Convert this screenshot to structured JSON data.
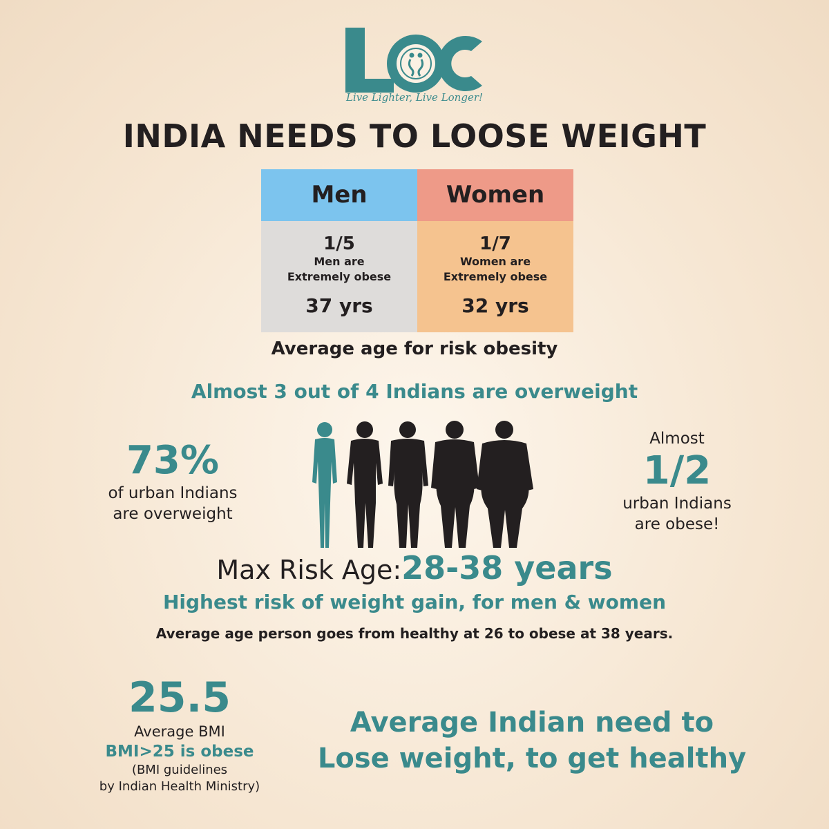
{
  "header": {
    "logo_text": "LOC",
    "tagline": "Live Lighter, Live Longer!",
    "title": "INDIA NEEDS TO LOOSE WEIGHT"
  },
  "comparison_table": {
    "men": {
      "label": "Men",
      "fraction": "1/5",
      "desc_line1": "Men are",
      "desc_line2": "Extremely obese",
      "age": "37 yrs",
      "header_color": "#7cc4ee",
      "body_color": "#dedcda"
    },
    "women": {
      "label": "Women",
      "fraction": "1/7",
      "desc_line1": "Women are",
      "desc_line2": "Extremely obese",
      "age": "32 yrs",
      "header_color": "#ee9a88",
      "body_color": "#f5c38f"
    },
    "caption": "Average age for risk obesity"
  },
  "overweight": {
    "headline": "Almost 3 out of 4 Indians are overweight",
    "urban_pct": "73%",
    "urban_pct_line1": "of urban Indians",
    "urban_pct_line2": "are overweight",
    "obese_prefix": "Almost",
    "obese_fraction": "1/2",
    "obese_line1": "urban Indians",
    "obese_line2": "are obese!"
  },
  "risk": {
    "label": "Max Risk Age:",
    "value": "28-38 years",
    "subtitle": "Highest risk of weight gain, for men & women",
    "note": "Average age person goes from healthy at 26 to obese at 38 years."
  },
  "bmi": {
    "value": "25.5",
    "label": "Average BMI",
    "rule": "BMI>25 is obese",
    "guide_line1": "(BMI guidelines",
    "guide_line2": "by Indian Health Ministry)"
  },
  "closing": {
    "line1": "Average Indian need to",
    "line2": "Lose weight, to get healthy"
  },
  "colors": {
    "accent": "#3a8a8c",
    "text": "#231f20"
  }
}
